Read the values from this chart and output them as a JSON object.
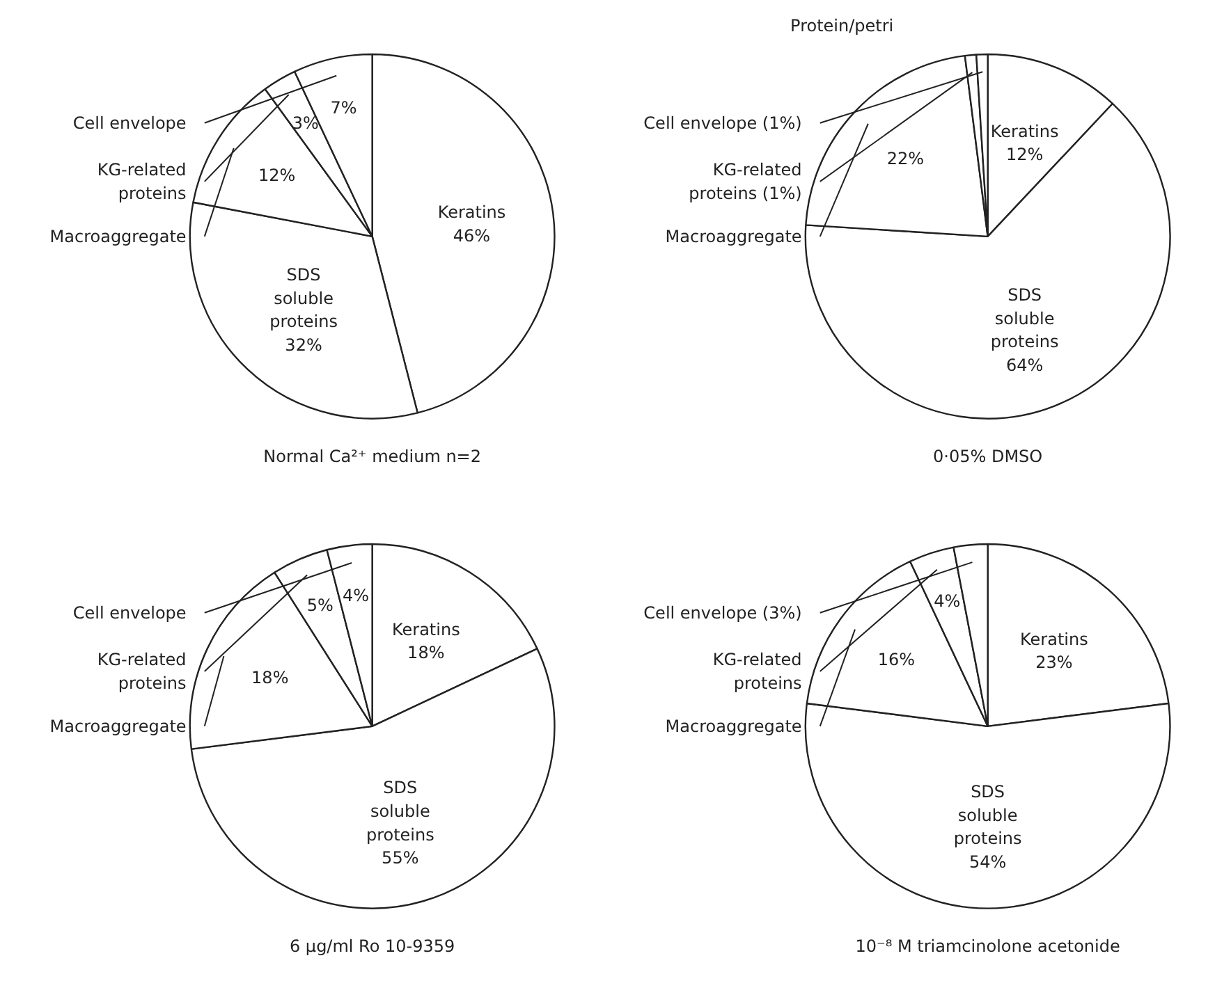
{
  "chart_data": [
    {
      "type": "pie",
      "title": "Normal Ca²⁺ medium n=2",
      "categories": [
        "Keratins",
        "SDS\nsoluble\nproteins",
        "Macroaggregate",
        "KG-related\nproteins",
        "Cell envelope"
      ],
      "values": [
        46,
        32,
        12,
        3,
        7
      ],
      "value_labels": [
        "46%",
        "32%",
        "12%",
        "3%",
        "7%"
      ],
      "colors": [
        "#ffffff",
        "#ffffff",
        "#ffffff",
        "#ffffff",
        "#ffffff"
      ]
    },
    {
      "type": "pie",
      "title": "0·05% DMSO",
      "annotations": [
        "Protein/petri"
      ],
      "categories": [
        "Keratins",
        "SDS\nsoluble\nproteins",
        "Macroaggregate",
        "KG-related\nproteins (1%)",
        "Cell envelope (1%)"
      ],
      "values": [
        12,
        64,
        22,
        1,
        1
      ],
      "value_labels": [
        "12%",
        "64%",
        "22%",
        null,
        null
      ],
      "colors": [
        "#ffffff",
        "#ffffff",
        "#ffffff",
        "#ffffff",
        "#ffffff"
      ]
    },
    {
      "type": "pie",
      "title": "6 μg/ml Ro 10-9359",
      "categories": [
        "Keratins",
        "SDS\nsoluble\nproteins",
        "Macroaggregate",
        "KG-related\nproteins",
        "Cell envelope"
      ],
      "values": [
        18,
        55,
        18,
        5,
        4
      ],
      "value_labels": [
        "18%",
        "55%",
        "18%",
        "5%",
        "4%"
      ],
      "colors": [
        "#ffffff",
        "#ffffff",
        "#ffffff",
        "#ffffff",
        "#ffffff"
      ]
    },
    {
      "type": "pie",
      "title": "10⁻⁸ M triamcinolone acetonide",
      "categories": [
        "Keratins",
        "SDS\nsoluble\nproteins",
        "Macroaggregate",
        "KG-related\nproteins",
        "Cell envelope (3%)"
      ],
      "values": [
        23,
        54,
        16,
        4,
        3
      ],
      "value_labels": [
        "23%",
        "54%",
        "16%",
        "4%",
        null
      ],
      "colors": [
        "#ffffff",
        "#ffffff",
        "#ffffff",
        "#ffffff",
        "#ffffff"
      ]
    }
  ]
}
